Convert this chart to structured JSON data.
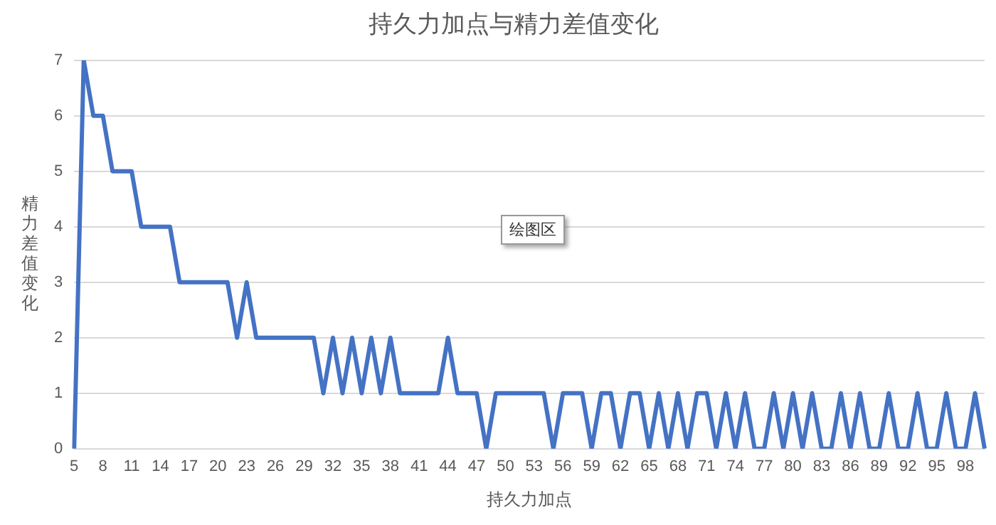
{
  "chart_data": {
    "type": "line",
    "title": "持久力加点与精力差值变化",
    "xlabel": "持久力加点",
    "ylabel": "精力差值变化",
    "categories": [
      "5",
      null,
      null,
      "8",
      null,
      null,
      "11",
      null,
      null,
      "14",
      null,
      null,
      "17",
      null,
      null,
      "20",
      null,
      null,
      "23",
      null,
      null,
      "26",
      null,
      null,
      "29",
      null,
      null,
      "32",
      null,
      null,
      "35",
      null,
      null,
      "38",
      null,
      null,
      "41",
      null,
      null,
      "44",
      null,
      null,
      "47",
      null,
      null,
      "50",
      null,
      null,
      "53",
      null,
      null,
      "56",
      null,
      null,
      "59",
      null,
      null,
      "62",
      null,
      null,
      "65",
      null,
      null,
      "68",
      null,
      null,
      "71",
      null,
      null,
      "74",
      null,
      null,
      "77",
      null,
      null,
      "80",
      null,
      null,
      "83",
      null,
      null,
      "86",
      null,
      null,
      "89",
      null,
      null,
      "92",
      null,
      null,
      "95",
      null,
      null,
      "98",
      null,
      null
    ],
    "series": [
      {
        "color": "#4472c4",
        "values": [
          0,
          7,
          6,
          6,
          5,
          5,
          5,
          4,
          4,
          4,
          4,
          3,
          3,
          3,
          3,
          3,
          3,
          2,
          3,
          2,
          2,
          2,
          2,
          2,
          2,
          2,
          1,
          2,
          1,
          2,
          1,
          2,
          1,
          2,
          1,
          1,
          1,
          1,
          1,
          2,
          1,
          1,
          1,
          0,
          1,
          1,
          1,
          1,
          1,
          1,
          0,
          1,
          1,
          1,
          0,
          1,
          1,
          0,
          1,
          1,
          0,
          1,
          0,
          1,
          0,
          1,
          1,
          0,
          1,
          0,
          1,
          0,
          0,
          1,
          0,
          1,
          0,
          1,
          0,
          0,
          1,
          0,
          1,
          0,
          0,
          1,
          0,
          0,
          1,
          0,
          0,
          1,
          0,
          0,
          1,
          0
        ]
      }
    ],
    "ylim": [
      0,
      7
    ],
    "yticks": [
      0,
      1,
      2,
      3,
      4,
      5,
      6,
      7
    ],
    "grid": "y",
    "legend": false,
    "marker": "none",
    "line_style": "solid",
    "annotations": [
      "绘图区"
    ]
  }
}
